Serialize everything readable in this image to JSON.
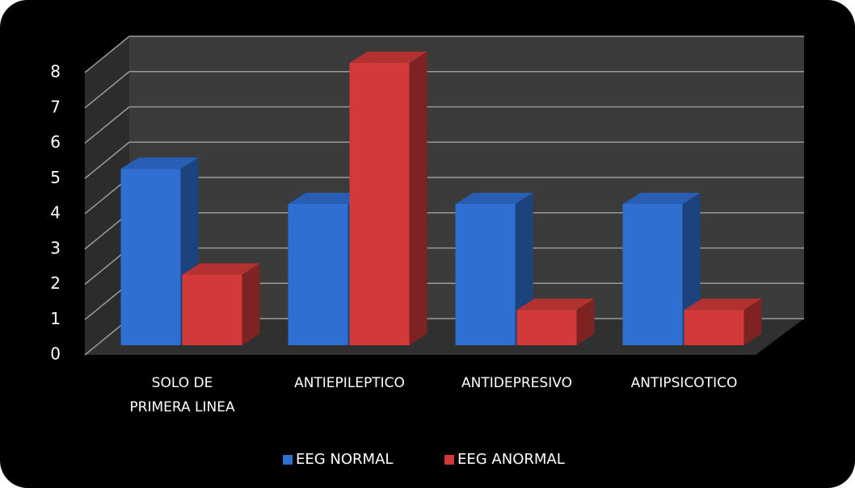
{
  "chart_data": {
    "type": "bar3d",
    "categories": [
      "SOLO DE\nPRIMERA LINEA",
      "ANTIEPILEPTICO",
      "ANTIDEPRESIVO",
      "ANTIPSICOTICO"
    ],
    "series": [
      {
        "name": "EEG NORMAL",
        "color": "#2f6fd2",
        "values": [
          5,
          4,
          4,
          4
        ]
      },
      {
        "name": "EEG ANORMAL",
        "color": "#d23a3a",
        "values": [
          2,
          8,
          1,
          1
        ]
      }
    ],
    "ylim": [
      0,
      8
    ],
    "yticks": [
      0,
      1,
      2,
      3,
      4,
      5,
      6,
      7,
      8
    ],
    "grid": true,
    "legend": "bottom"
  }
}
